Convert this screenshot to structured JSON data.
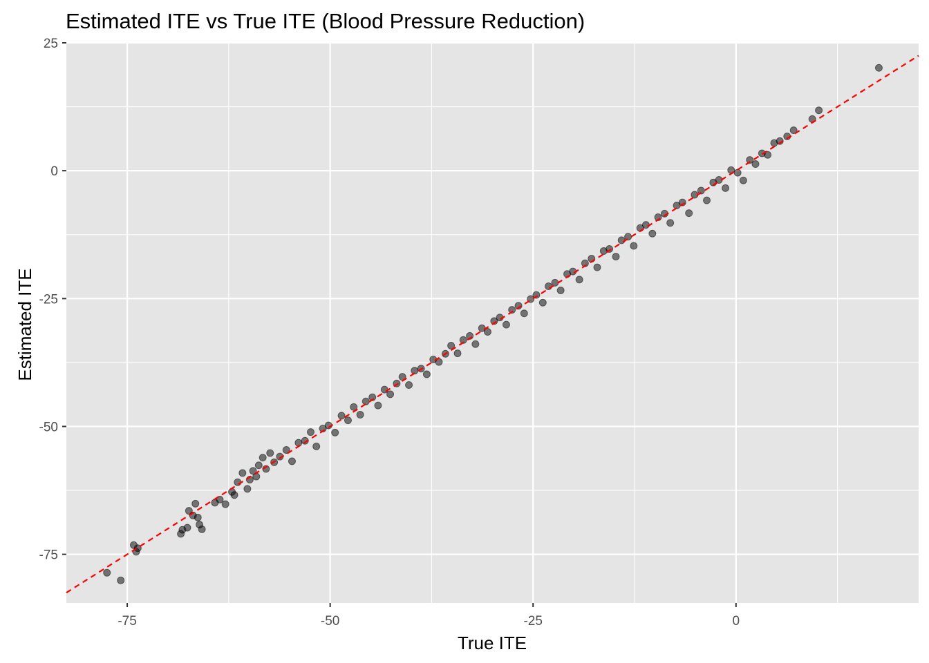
{
  "chart_data": {
    "type": "scatter",
    "title": "Estimated ITE vs True ITE (Blood Pressure Reduction)",
    "xlabel": "True ITE",
    "ylabel": "Estimated ITE",
    "xlim": [
      -82.5,
      22.5
    ],
    "ylim": [
      -84.5,
      25
    ],
    "x_ticks": [
      -75,
      -50,
      -25,
      0
    ],
    "x_tick_labels": [
      "-75",
      "-50",
      "-25",
      "0"
    ],
    "y_ticks": [
      -75,
      -50,
      -25,
      0,
      25
    ],
    "y_tick_labels": [
      "-75",
      "-50",
      "-25",
      "0",
      "25"
    ],
    "grid": true,
    "panel_background": "#e5e5e5",
    "grid_color": "#ffffff",
    "point_color": "#000000",
    "point_opacity": 0.5,
    "reference_line": {
      "style": "dashed",
      "color": "#ff0000",
      "slope": 1,
      "intercept": 0
    },
    "approx_point_count": 2000,
    "x": [
      -77.5,
      -75.8,
      -74.2,
      -73.9,
      -73.7,
      -68.4,
      -68.2,
      -67.6,
      -67.4,
      -66.9,
      -66.6,
      -66.3,
      -66.1,
      -65.8,
      -64.2,
      -63.6,
      -62.9,
      -62.1,
      -61.8,
      -61.4,
      -60.8,
      -60.2,
      -59.9,
      -59.5,
      -59.1,
      -58.8,
      -58.3,
      -57.9,
      -57.4,
      -56.9,
      -56.2,
      -55.4,
      -54.7,
      -53.9,
      -53.1,
      -52.4,
      -51.7,
      -50.9,
      -50.2,
      -49.4,
      -48.6,
      -47.8,
      -47.1,
      -46.3,
      -45.6,
      -44.8,
      -44.1,
      -43.3,
      -42.6,
      -41.8,
      -41.1,
      -40.3,
      -39.6,
      -38.8,
      -38.1,
      -37.3,
      -36.6,
      -35.8,
      -35.1,
      -34.3,
      -33.6,
      -32.8,
      -32.1,
      -31.3,
      -30.6,
      -29.8,
      -29.1,
      -28.3,
      -27.6,
      -26.8,
      -26.1,
      -25.3,
      -24.6,
      -23.8,
      -23.1,
      -22.3,
      -21.6,
      -20.8,
      -20.1,
      -19.3,
      -18.6,
      -17.8,
      -17.1,
      -16.3,
      -15.6,
      -14.8,
      -14.1,
      -13.3,
      -12.6,
      -11.8,
      -11.1,
      -10.3,
      -9.6,
      -8.8,
      -8.1,
      -7.3,
      -6.6,
      -5.8,
      -5.1,
      -4.3,
      -3.6,
      -2.8,
      -2.1,
      -1.3,
      -0.6,
      0.2,
      0.9,
      1.7,
      2.4,
      3.2,
      3.9,
      4.7,
      5.4,
      6.3,
      7.1,
      9.4,
      10.2,
      17.6
    ],
    "y": [
      -78.6,
      -80.1,
      -73.2,
      -74.5,
      -73.8,
      -71.0,
      -70.2,
      -69.8,
      -66.5,
      -67.4,
      -65.1,
      -67.8,
      -69.2,
      -70.1,
      -64.9,
      -64.3,
      -65.2,
      -62.8,
      -63.4,
      -60.9,
      -59.1,
      -62.2,
      -60.4,
      -58.7,
      -59.8,
      -57.6,
      -56.1,
      -58.3,
      -55.2,
      -57.0,
      -55.9,
      -54.6,
      -56.8,
      -53.2,
      -52.8,
      -51.1,
      -53.9,
      -50.4,
      -49.8,
      -51.2,
      -47.9,
      -48.8,
      -46.2,
      -47.7,
      -45.1,
      -44.3,
      -45.9,
      -42.8,
      -43.7,
      -41.6,
      -40.3,
      -41.9,
      -39.1,
      -38.7,
      -39.8,
      -36.9,
      -37.4,
      -35.8,
      -34.2,
      -35.7,
      -33.1,
      -32.3,
      -33.9,
      -30.8,
      -31.5,
      -29.4,
      -28.7,
      -30.1,
      -27.2,
      -26.4,
      -27.9,
      -25.1,
      -24.3,
      -25.8,
      -22.6,
      -21.9,
      -23.4,
      -20.2,
      -19.7,
      -21.3,
      -18.1,
      -17.2,
      -18.9,
      -15.7,
      -15.3,
      -16.8,
      -13.6,
      -12.9,
      -14.7,
      -11.2,
      -10.6,
      -12.3,
      -9.1,
      -8.4,
      -10.2,
      -6.8,
      -6.2,
      -8.3,
      -4.7,
      -3.9,
      -5.8,
      -2.3,
      -1.8,
      -3.4,
      0.1,
      -0.4,
      -1.9,
      2.1,
      1.3,
      3.4,
      3.1,
      5.4,
      5.8,
      6.7,
      7.9,
      10.1,
      11.8,
      20.1
    ]
  }
}
